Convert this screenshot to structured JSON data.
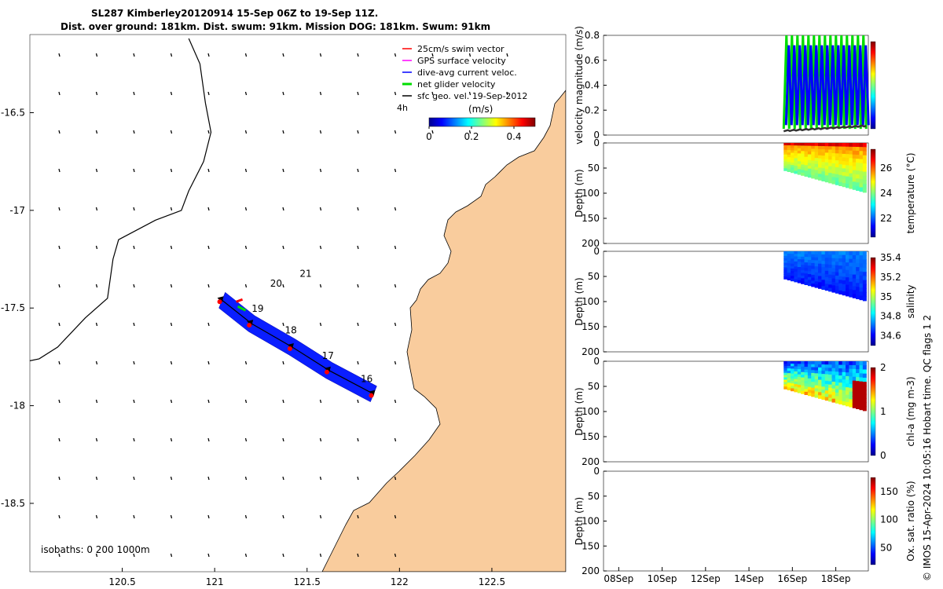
{
  "title": {
    "line1": "SL287 Kimberley20120914 15-Sep 06Z to 19-Sep 11Z.",
    "line2": "Dist. over ground: 181km. Dist. swum: 91km. Mission DOG: 181km. Swum: 91km"
  },
  "credit": "© IMOS 15-Apr-2024 10:05:16 Hobart time. QC flags 1  2",
  "colors": {
    "land": "#f9cc9d",
    "track": "#0a1eff",
    "sea_bg": "#ffffff"
  },
  "chart_data": [
    {
      "type": "scatter",
      "name": "map",
      "x_ticks": [
        "120.5",
        "121",
        "121.5",
        "122",
        "122.5"
      ],
      "y_ticks": [
        "-16.5",
        "-17",
        "-17.5",
        "-18",
        "-18.5"
      ],
      "xlim": [
        120.0,
        122.9
      ],
      "ylim": [
        -18.85,
        -16.1
      ],
      "legend": {
        "placement": "top-right",
        "entries": [
          {
            "label": "25cm/s swim vector",
            "color": "#ff0000"
          },
          {
            "label": "GPS surface velocity",
            "color": "#ff00ff"
          },
          {
            "label": "dive-avg current veloc.",
            "color": "#0000ff"
          },
          {
            "label": "net glider velocity",
            "color": "#00dd00"
          },
          {
            "label": "sfc geo. vel. 19-Sep-2012",
            "color": "#000000"
          }
        ]
      },
      "time_label": "4h",
      "colorbar": {
        "label": "(m/s)",
        "ticks": [
          "0",
          "0.2",
          "0.4"
        ],
        "range": [
          0,
          0.5
        ]
      },
      "day_labels": [
        {
          "text": "21",
          "lon": 121.46,
          "lat": -17.34
        },
        {
          "text": "20",
          "lon": 121.3,
          "lat": -17.39
        },
        {
          "text": "19",
          "lon": 121.2,
          "lat": -17.52
        },
        {
          "text": "18",
          "lon": 121.38,
          "lat": -17.63
        },
        {
          "text": "17",
          "lon": 121.58,
          "lat": -17.76
        },
        {
          "text": "16",
          "lon": 121.79,
          "lat": -17.88
        }
      ],
      "track": [
        [
          121.04,
          -17.46
        ],
        [
          121.2,
          -17.58
        ],
        [
          121.42,
          -17.7
        ],
        [
          121.62,
          -17.82
        ],
        [
          121.86,
          -17.94
        ]
      ],
      "isobaths_label": "isobaths: 0   200  1000m",
      "isobath_200m": [
        [
          120.86,
          -16.12
        ],
        [
          120.92,
          -16.25
        ],
        [
          120.95,
          -16.45
        ],
        [
          120.98,
          -16.6
        ],
        [
          120.94,
          -16.75
        ],
        [
          120.86,
          -16.9
        ],
        [
          120.82,
          -17.0
        ],
        [
          120.68,
          -17.05
        ],
        [
          120.48,
          -17.15
        ],
        [
          120.45,
          -17.25
        ],
        [
          120.42,
          -17.45
        ],
        [
          120.3,
          -17.55
        ],
        [
          120.15,
          -17.7
        ],
        [
          120.05,
          -17.76
        ],
        [
          120.0,
          -17.77
        ]
      ]
    },
    {
      "type": "line",
      "name": "velocity",
      "ylabel": "velocity magnitude (m/s)",
      "ylim": [
        0,
        0.8
      ],
      "y_ticks": [
        "0",
        "0.2",
        "0.4",
        "0.6",
        "0.8"
      ],
      "series": [
        {
          "color": "#00dd00",
          "x": [
            15.6,
            19.4
          ]
        },
        {
          "color": "#0000ff",
          "x": [
            15.6,
            19.4
          ]
        },
        {
          "color": "#333333",
          "x": [
            15.6,
            19.4
          ]
        }
      ]
    },
    {
      "type": "heatmap",
      "name": "temperature",
      "ylabel": "Depth (m)",
      "clabel": "temperature (°C)",
      "y_ticks": [
        "0",
        "50",
        "100",
        "150",
        "200"
      ],
      "c_ticks": [
        "22",
        "24",
        "26"
      ],
      "crange": [
        20.5,
        27.5
      ],
      "ylim": [
        0,
        200
      ]
    },
    {
      "type": "heatmap",
      "name": "salinity",
      "ylabel": "Depth (m)",
      "clabel": "salinity",
      "y_ticks": [
        "0",
        "50",
        "100",
        "150",
        "200"
      ],
      "c_ticks": [
        "34.6",
        "34.8",
        "35",
        "35.2",
        "35.4"
      ],
      "crange": [
        34.5,
        35.4
      ],
      "ylim": [
        0,
        200
      ]
    },
    {
      "type": "heatmap",
      "name": "chla",
      "ylabel": "Depth (m)",
      "clabel": "chl-a (mg m-3)",
      "y_ticks": [
        "0",
        "50",
        "100",
        "150",
        "200"
      ],
      "c_ticks": [
        "0",
        "1",
        "2"
      ],
      "crange": [
        0,
        2
      ],
      "ylim": [
        0,
        200
      ]
    },
    {
      "type": "heatmap",
      "name": "oxygen",
      "ylabel": "Depth (m)",
      "clabel": "Ox. sat. ratio (%)",
      "y_ticks": [
        "0",
        "50",
        "100",
        "150",
        "200"
      ],
      "c_ticks": [
        "50",
        "100",
        "150"
      ],
      "crange": [
        20,
        175
      ],
      "ylim": [
        0,
        200
      ],
      "x_ticks": [
        "08Sep",
        "10Sep",
        "12Sep",
        "14Sep",
        "16Sep",
        "18Sep"
      ],
      "xlim": [
        7.3,
        19.5
      ]
    }
  ]
}
